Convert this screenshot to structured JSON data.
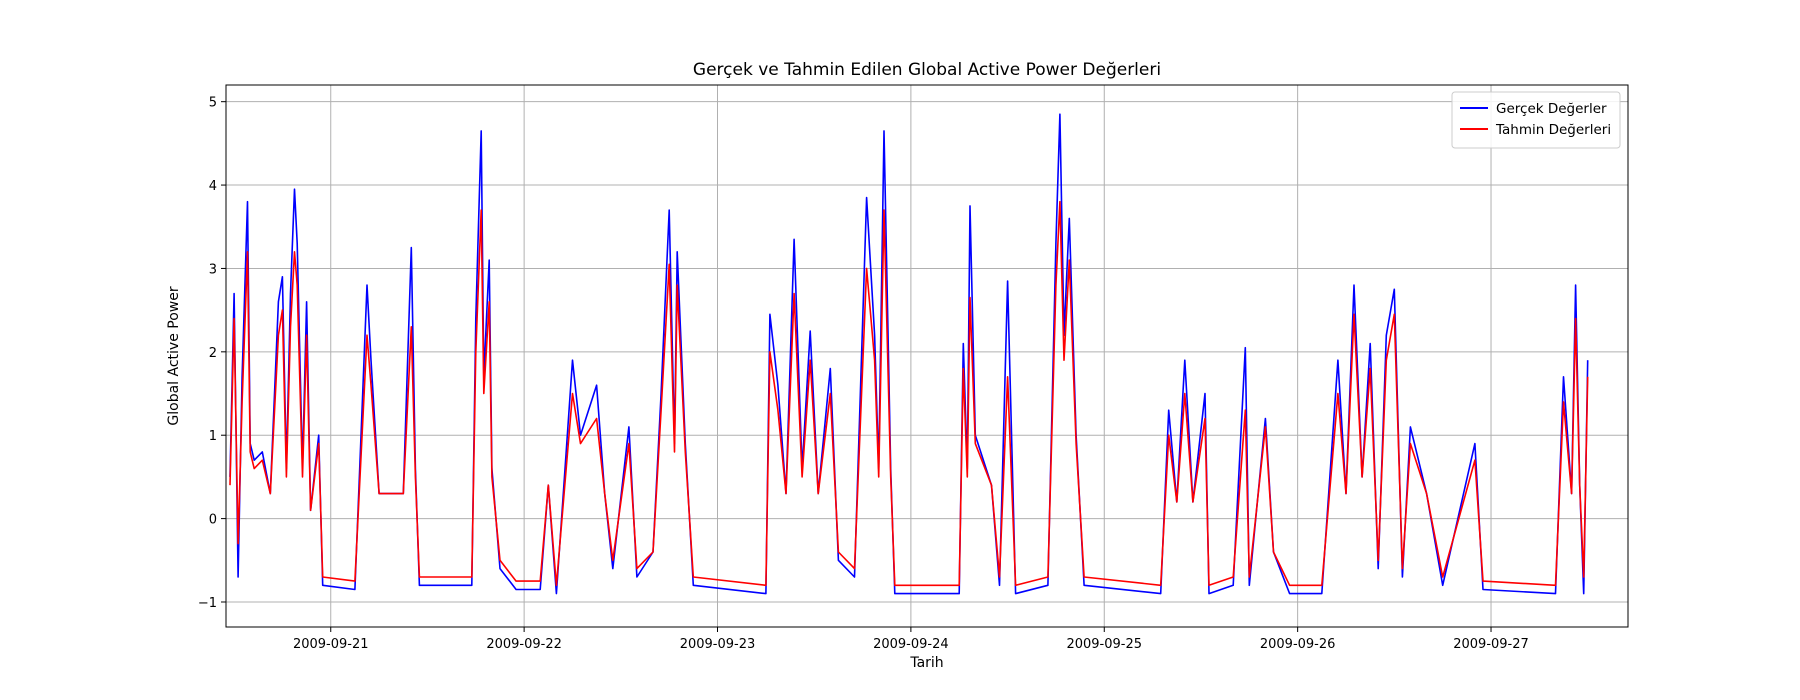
{
  "chart_data": {
    "type": "line",
    "title": "Gerçek ve Tahmin Edilen Global Active Power Değerleri",
    "xlabel": "Tarih",
    "ylabel": "Global Active Power",
    "x_range": [
      "2009-09-20 11:00",
      "2009-09-27 17:00"
    ],
    "ylim": [
      -1.3,
      5.2
    ],
    "yticks": [
      -1,
      0,
      1,
      2,
      3,
      4,
      5
    ],
    "xticks": [
      "2009-09-21",
      "2009-09-22",
      "2009-09-23",
      "2009-09-24",
      "2009-09-25",
      "2009-09-26",
      "2009-09-27"
    ],
    "grid": true,
    "legend_position": "top-right",
    "series": [
      {
        "name": "Gerçek Değerler",
        "color": "#0000ff",
        "points": [
          [
            "2009-09-20 11:30",
            0.5
          ],
          [
            "2009-09-20 12:00",
            2.7
          ],
          [
            "2009-09-20 12:30",
            -0.7
          ],
          [
            "2009-09-20 13:00",
            1.7
          ],
          [
            "2009-09-20 13:40",
            3.8
          ],
          [
            "2009-09-20 14:00",
            0.9
          ],
          [
            "2009-09-20 14:30",
            0.7
          ],
          [
            "2009-09-20 15:30",
            0.8
          ],
          [
            "2009-09-20 16:30",
            0.3
          ],
          [
            "2009-09-20 17:30",
            2.6
          ],
          [
            "2009-09-20 18:00",
            2.9
          ],
          [
            "2009-09-20 18:30",
            0.6
          ],
          [
            "2009-09-20 19:00",
            2.7
          ],
          [
            "2009-09-20 19:30",
            3.95
          ],
          [
            "2009-09-20 19:50",
            3.3
          ],
          [
            "2009-09-20 20:30",
            0.6
          ],
          [
            "2009-09-20 21:00",
            2.6
          ],
          [
            "2009-09-20 21:30",
            0.1
          ],
          [
            "2009-09-20 22:30",
            1.0
          ],
          [
            "2009-09-20 23:00",
            -0.8
          ],
          [
            "2009-09-21 03:00",
            -0.85
          ],
          [
            "2009-09-21 04:30",
            2.8
          ],
          [
            "2009-09-21 05:00",
            1.9
          ],
          [
            "2009-09-21 06:00",
            0.3
          ],
          [
            "2009-09-21 09:00",
            0.3
          ],
          [
            "2009-09-21 10:00",
            3.25
          ],
          [
            "2009-09-21 10:30",
            0.6
          ],
          [
            "2009-09-21 11:00",
            -0.8
          ],
          [
            "2009-09-21 17:30",
            -0.8
          ],
          [
            "2009-09-21 18:00",
            2.4
          ],
          [
            "2009-09-21 18:40",
            4.65
          ],
          [
            "2009-09-21 19:00",
            1.7
          ],
          [
            "2009-09-21 19:40",
            3.1
          ],
          [
            "2009-09-21 20:00",
            0.6
          ],
          [
            "2009-09-21 21:00",
            -0.6
          ],
          [
            "2009-09-21 23:00",
            -0.85
          ],
          [
            "2009-09-22 02:00",
            -0.85
          ],
          [
            "2009-09-22 03:00",
            0.4
          ],
          [
            "2009-09-22 04:00",
            -0.9
          ],
          [
            "2009-09-22 06:00",
            1.9
          ],
          [
            "2009-09-22 07:00",
            1.0
          ],
          [
            "2009-09-22 09:00",
            1.6
          ],
          [
            "2009-09-22 10:00",
            0.3
          ],
          [
            "2009-09-22 11:00",
            -0.6
          ],
          [
            "2009-09-22 13:00",
            1.1
          ],
          [
            "2009-09-22 14:00",
            -0.7
          ],
          [
            "2009-09-22 16:00",
            -0.4
          ],
          [
            "2009-09-22 17:00",
            1.5
          ],
          [
            "2009-09-22 18:00",
            3.7
          ],
          [
            "2009-09-22 18:40",
            0.9
          ],
          [
            "2009-09-22 19:00",
            3.2
          ],
          [
            "2009-09-22 20:00",
            0.9
          ],
          [
            "2009-09-22 21:00",
            -0.8
          ],
          [
            "2009-09-23 06:00",
            -0.9
          ],
          [
            "2009-09-23 06:30",
            2.45
          ],
          [
            "2009-09-23 07:30",
            1.6
          ],
          [
            "2009-09-23 08:30",
            0.3
          ],
          [
            "2009-09-23 09:30",
            3.35
          ],
          [
            "2009-09-23 10:30",
            0.6
          ],
          [
            "2009-09-23 11:30",
            2.25
          ],
          [
            "2009-09-23 12:30",
            0.3
          ],
          [
            "2009-09-23 14:00",
            1.8
          ],
          [
            "2009-09-23 15:00",
            -0.5
          ],
          [
            "2009-09-23 17:00",
            -0.7
          ],
          [
            "2009-09-23 18:30",
            3.85
          ],
          [
            "2009-09-23 19:30",
            2.2
          ],
          [
            "2009-09-23 20:00",
            0.6
          ],
          [
            "2009-09-23 20:40",
            4.65
          ],
          [
            "2009-09-23 21:30",
            0.6
          ],
          [
            "2009-09-23 22:00",
            -0.9
          ],
          [
            "2009-09-24 06:00",
            -0.9
          ],
          [
            "2009-09-24 06:30",
            2.1
          ],
          [
            "2009-09-24 07:00",
            0.6
          ],
          [
            "2009-09-24 07:20",
            3.75
          ],
          [
            "2009-09-24 08:00",
            1.0
          ],
          [
            "2009-09-24 10:00",
            0.4
          ],
          [
            "2009-09-24 11:00",
            -0.8
          ],
          [
            "2009-09-24 12:00",
            2.85
          ],
          [
            "2009-09-24 13:00",
            -0.9
          ],
          [
            "2009-09-24 17:00",
            -0.8
          ],
          [
            "2009-09-24 18:00",
            3.3
          ],
          [
            "2009-09-24 18:30",
            4.85
          ],
          [
            "2009-09-24 19:00",
            2.2
          ],
          [
            "2009-09-24 19:40",
            3.6
          ],
          [
            "2009-09-24 20:30",
            1.0
          ],
          [
            "2009-09-24 21:30",
            -0.8
          ],
          [
            "2009-09-25 07:00",
            -0.9
          ],
          [
            "2009-09-25 08:00",
            1.3
          ],
          [
            "2009-09-25 09:00",
            0.2
          ],
          [
            "2009-09-25 10:00",
            1.9
          ],
          [
            "2009-09-25 11:00",
            0.2
          ],
          [
            "2009-09-25 12:30",
            1.5
          ],
          [
            "2009-09-25 13:00",
            -0.9
          ],
          [
            "2009-09-25 16:00",
            -0.8
          ],
          [
            "2009-09-25 17:30",
            2.05
          ],
          [
            "2009-09-25 18:00",
            -0.8
          ],
          [
            "2009-09-25 20:00",
            1.2
          ],
          [
            "2009-09-25 21:00",
            -0.4
          ],
          [
            "2009-09-25 23:00",
            -0.9
          ],
          [
            "2009-09-26 03:00",
            -0.9
          ],
          [
            "2009-09-26 05:00",
            1.9
          ],
          [
            "2009-09-26 06:00",
            0.3
          ],
          [
            "2009-09-26 07:00",
            2.8
          ],
          [
            "2009-09-26 08:00",
            0.5
          ],
          [
            "2009-09-26 09:00",
            2.1
          ],
          [
            "2009-09-26 10:00",
            -0.6
          ],
          [
            "2009-09-26 11:00",
            2.2
          ],
          [
            "2009-09-26 12:00",
            2.75
          ],
          [
            "2009-09-26 13:00",
            -0.7
          ],
          [
            "2009-09-26 14:00",
            1.1
          ],
          [
            "2009-09-26 16:00",
            0.3
          ],
          [
            "2009-09-26 18:00",
            -0.8
          ],
          [
            "2009-09-26 22:00",
            0.9
          ],
          [
            "2009-09-26 23:00",
            -0.85
          ],
          [
            "2009-09-27 08:00",
            -0.9
          ],
          [
            "2009-09-27 09:00",
            1.7
          ],
          [
            "2009-09-27 10:00",
            0.3
          ],
          [
            "2009-09-27 10:30",
            2.8
          ],
          [
            "2009-09-27 11:00",
            0.4
          ],
          [
            "2009-09-27 11:30",
            -0.9
          ],
          [
            "2009-09-27 12:00",
            1.9
          ]
        ]
      },
      {
        "name": "Tahmin Değerleri",
        "color": "#ff0000",
        "points": [
          [
            "2009-09-20 11:30",
            0.4
          ],
          [
            "2009-09-20 12:00",
            2.4
          ],
          [
            "2009-09-20 12:30",
            -0.3
          ],
          [
            "2009-09-20 13:00",
            1.4
          ],
          [
            "2009-09-20 13:40",
            3.2
          ],
          [
            "2009-09-20 14:00",
            0.8
          ],
          [
            "2009-09-20 14:30",
            0.6
          ],
          [
            "2009-09-20 15:30",
            0.7
          ],
          [
            "2009-09-20 16:30",
            0.3
          ],
          [
            "2009-09-20 17:30",
            2.2
          ],
          [
            "2009-09-20 18:00",
            2.5
          ],
          [
            "2009-09-20 18:30",
            0.5
          ],
          [
            "2009-09-20 19:00",
            2.3
          ],
          [
            "2009-09-20 19:30",
            3.2
          ],
          [
            "2009-09-20 19:50",
            2.8
          ],
          [
            "2009-09-20 20:30",
            0.5
          ],
          [
            "2009-09-20 21:00",
            2.2
          ],
          [
            "2009-09-20 21:30",
            0.1
          ],
          [
            "2009-09-20 22:30",
            0.9
          ],
          [
            "2009-09-20 23:00",
            -0.7
          ],
          [
            "2009-09-21 03:00",
            -0.75
          ],
          [
            "2009-09-21 04:30",
            2.2
          ],
          [
            "2009-09-21 05:00",
            1.6
          ],
          [
            "2009-09-21 06:00",
            0.3
          ],
          [
            "2009-09-21 09:00",
            0.3
          ],
          [
            "2009-09-21 10:00",
            2.3
          ],
          [
            "2009-09-21 10:30",
            0.5
          ],
          [
            "2009-09-21 11:00",
            -0.7
          ],
          [
            "2009-09-21 17:30",
            -0.7
          ],
          [
            "2009-09-21 18:00",
            2.0
          ],
          [
            "2009-09-21 18:40",
            3.7
          ],
          [
            "2009-09-21 19:00",
            1.5
          ],
          [
            "2009-09-21 19:40",
            2.6
          ],
          [
            "2009-09-21 20:00",
            0.5
          ],
          [
            "2009-09-21 21:00",
            -0.5
          ],
          [
            "2009-09-21 23:00",
            -0.75
          ],
          [
            "2009-09-22 02:00",
            -0.75
          ],
          [
            "2009-09-22 03:00",
            0.4
          ],
          [
            "2009-09-22 04:00",
            -0.8
          ],
          [
            "2009-09-22 06:00",
            1.5
          ],
          [
            "2009-09-22 07:00",
            0.9
          ],
          [
            "2009-09-22 09:00",
            1.2
          ],
          [
            "2009-09-22 10:00",
            0.3
          ],
          [
            "2009-09-22 11:00",
            -0.5
          ],
          [
            "2009-09-22 13:00",
            0.9
          ],
          [
            "2009-09-22 14:00",
            -0.6
          ],
          [
            "2009-09-22 16:00",
            -0.4
          ],
          [
            "2009-09-22 17:00",
            1.3
          ],
          [
            "2009-09-22 18:00",
            3.05
          ],
          [
            "2009-09-22 18:40",
            0.8
          ],
          [
            "2009-09-22 19:00",
            2.8
          ],
          [
            "2009-09-22 20:00",
            0.8
          ],
          [
            "2009-09-22 21:00",
            -0.7
          ],
          [
            "2009-09-23 06:00",
            -0.8
          ],
          [
            "2009-09-23 06:30",
            2.0
          ],
          [
            "2009-09-23 07:30",
            1.3
          ],
          [
            "2009-09-23 08:30",
            0.3
          ],
          [
            "2009-09-23 09:30",
            2.7
          ],
          [
            "2009-09-23 10:30",
            0.5
          ],
          [
            "2009-09-23 11:30",
            1.9
          ],
          [
            "2009-09-23 12:30",
            0.3
          ],
          [
            "2009-09-23 14:00",
            1.5
          ],
          [
            "2009-09-23 15:00",
            -0.4
          ],
          [
            "2009-09-23 17:00",
            -0.6
          ],
          [
            "2009-09-23 18:30",
            3.0
          ],
          [
            "2009-09-23 19:30",
            1.9
          ],
          [
            "2009-09-23 20:00",
            0.5
          ],
          [
            "2009-09-23 20:40",
            3.7
          ],
          [
            "2009-09-23 21:30",
            0.5
          ],
          [
            "2009-09-23 22:00",
            -0.8
          ],
          [
            "2009-09-24 06:00",
            -0.8
          ],
          [
            "2009-09-24 06:30",
            1.8
          ],
          [
            "2009-09-24 07:00",
            0.5
          ],
          [
            "2009-09-24 07:20",
            2.65
          ],
          [
            "2009-09-24 08:00",
            0.9
          ],
          [
            "2009-09-24 10:00",
            0.4
          ],
          [
            "2009-09-24 11:00",
            -0.7
          ],
          [
            "2009-09-24 12:00",
            1.7
          ],
          [
            "2009-09-24 13:00",
            -0.8
          ],
          [
            "2009-09-24 17:00",
            -0.7
          ],
          [
            "2009-09-24 18:00",
            2.8
          ],
          [
            "2009-09-24 18:30",
            3.8
          ],
          [
            "2009-09-24 19:00",
            1.9
          ],
          [
            "2009-09-24 19:40",
            3.1
          ],
          [
            "2009-09-24 20:30",
            0.9
          ],
          [
            "2009-09-24 21:30",
            -0.7
          ],
          [
            "2009-09-25 07:00",
            -0.8
          ],
          [
            "2009-09-25 08:00",
            1.0
          ],
          [
            "2009-09-25 09:00",
            0.2
          ],
          [
            "2009-09-25 10:00",
            1.5
          ],
          [
            "2009-09-25 11:00",
            0.2
          ],
          [
            "2009-09-25 12:30",
            1.2
          ],
          [
            "2009-09-25 13:00",
            -0.8
          ],
          [
            "2009-09-25 16:00",
            -0.7
          ],
          [
            "2009-09-25 17:30",
            1.3
          ],
          [
            "2009-09-25 18:00",
            -0.7
          ],
          [
            "2009-09-25 20:00",
            1.1
          ],
          [
            "2009-09-25 21:00",
            -0.4
          ],
          [
            "2009-09-25 23:00",
            -0.8
          ],
          [
            "2009-09-26 03:00",
            -0.8
          ],
          [
            "2009-09-26 05:00",
            1.5
          ],
          [
            "2009-09-26 06:00",
            0.3
          ],
          [
            "2009-09-26 07:00",
            2.45
          ],
          [
            "2009-09-26 08:00",
            0.5
          ],
          [
            "2009-09-26 09:00",
            1.8
          ],
          [
            "2009-09-26 10:00",
            -0.5
          ],
          [
            "2009-09-26 11:00",
            1.9
          ],
          [
            "2009-09-26 12:00",
            2.45
          ],
          [
            "2009-09-26 13:00",
            -0.6
          ],
          [
            "2009-09-26 14:00",
            0.9
          ],
          [
            "2009-09-26 16:00",
            0.3
          ],
          [
            "2009-09-26 18:00",
            -0.7
          ],
          [
            "2009-09-26 22:00",
            0.7
          ],
          [
            "2009-09-26 23:00",
            -0.75
          ],
          [
            "2009-09-27 08:00",
            -0.8
          ],
          [
            "2009-09-27 09:00",
            1.4
          ],
          [
            "2009-09-27 10:00",
            0.3
          ],
          [
            "2009-09-27 10:30",
            2.4
          ],
          [
            "2009-09-27 11:00",
            0.4
          ],
          [
            "2009-09-27 11:30",
            -0.7
          ],
          [
            "2009-09-27 12:00",
            1.7
          ]
        ]
      }
    ]
  }
}
